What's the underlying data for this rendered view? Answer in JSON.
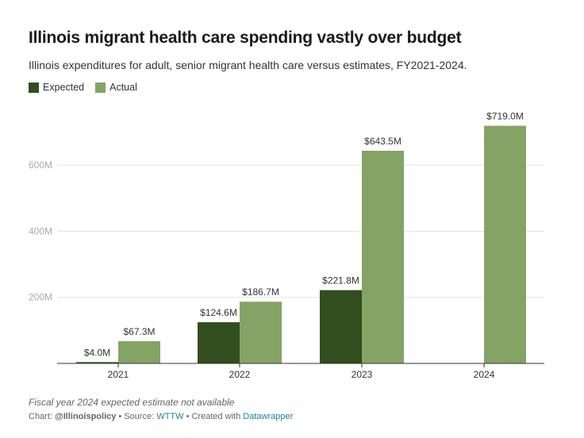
{
  "title": "Illinois migrant health care spending vastly over budget",
  "subtitle": "Illinois expenditures for adult, senior migrant health care versus estimates, FY2021-2024.",
  "legend": [
    {
      "label": "Expected",
      "color": "#324d1e"
    },
    {
      "label": "Actual",
      "color": "#84a466"
    }
  ],
  "footnote": "Fiscal year 2024 expected estimate not available",
  "credit": {
    "prefix": "Chart: ",
    "author": "@Illinoispolicy",
    "source_prefix": " • Source: ",
    "source": "WTTW",
    "created_prefix": " • Created with ",
    "tool": "Datawrapper"
  },
  "chart_data": {
    "type": "bar",
    "title": "Illinois migrant health care spending vastly over budget",
    "categories": [
      "2021",
      "2022",
      "2023",
      "2024"
    ],
    "series": [
      {
        "name": "Expected",
        "color": "#324d1e",
        "values": [
          4.0,
          124.6,
          221.8,
          null
        ],
        "labels": [
          "$4.0M",
          "$124.6M",
          "$221.8M",
          ""
        ]
      },
      {
        "name": "Actual",
        "color": "#84a466",
        "values": [
          67.3,
          186.7,
          643.5,
          719.0
        ],
        "labels": [
          "$67.3M",
          "$186.7M",
          "$643.5M",
          "$719.0M"
        ]
      }
    ],
    "ylim": [
      0,
      719
    ],
    "yticks": [
      200,
      400,
      600
    ],
    "ytick_labels": [
      "200M",
      "400M",
      "600M"
    ],
    "xlabel": "",
    "ylabel": "",
    "grid": true,
    "legend": "top-left"
  }
}
